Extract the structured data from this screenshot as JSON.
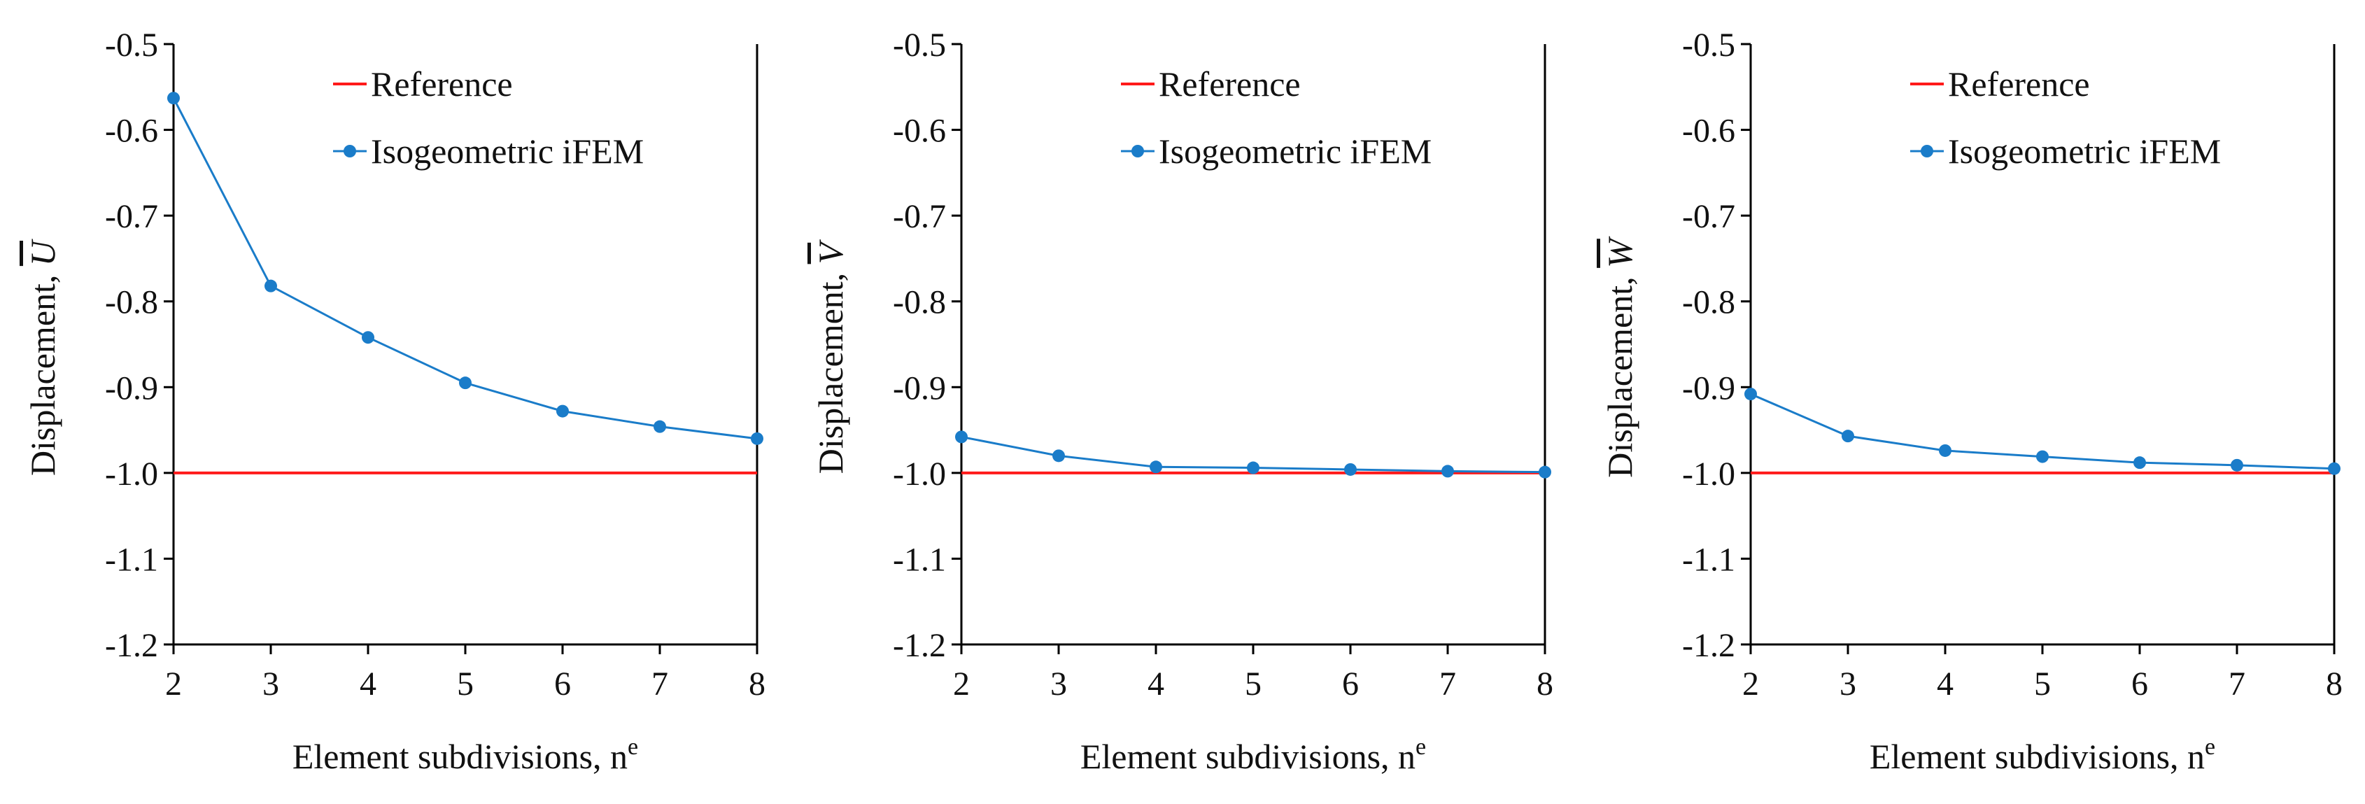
{
  "colors": {
    "reference": "#ff1a1a",
    "ifem": "#1a7cc9",
    "axis": "#000000"
  },
  "chart_data": [
    {
      "type": "line",
      "title": "",
      "xlabel": "Element subdivisions, n",
      "xlabel_superscript": "e",
      "ylabel": "Displacement,",
      "ylabel_symbol": "U",
      "xlim": [
        2,
        8
      ],
      "ylim": [
        -1.2,
        -0.5
      ],
      "x_ticks": [
        "2",
        "3",
        "4",
        "5",
        "6",
        "7",
        "8"
      ],
      "y_ticks": [
        "-0.5",
        "-0.6",
        "-0.7",
        "-0.8",
        "-0.9",
        "-1.0",
        "-1.1",
        "-1.2"
      ],
      "legend_position": "top-right",
      "series": [
        {
          "name": "Reference",
          "style": "line",
          "x": [
            2,
            8
          ],
          "y": [
            -1.0,
            -1.0
          ]
        },
        {
          "name": "Isogeometric iFEM",
          "style": "line-markers",
          "x": [
            2,
            3,
            4,
            5,
            6,
            7,
            8
          ],
          "y": [
            -0.563,
            -0.782,
            -0.842,
            -0.895,
            -0.928,
            -0.946,
            -0.96
          ]
        }
      ]
    },
    {
      "type": "line",
      "title": "",
      "xlabel": "Element subdivisions, n",
      "xlabel_superscript": "e",
      "ylabel": "Displacement,",
      "ylabel_symbol": "V",
      "xlim": [
        2,
        8
      ],
      "ylim": [
        -1.2,
        -0.5
      ],
      "x_ticks": [
        "2",
        "3",
        "4",
        "5",
        "6",
        "7",
        "8"
      ],
      "y_ticks": [
        "-0.5",
        "-0.6",
        "-0.7",
        "-0.8",
        "-0.9",
        "-1.0",
        "-1.1",
        "-1.2"
      ],
      "legend_position": "top-right",
      "series": [
        {
          "name": "Reference",
          "style": "line",
          "x": [
            2,
            8
          ],
          "y": [
            -1.0,
            -1.0
          ]
        },
        {
          "name": "Isogeometric iFEM",
          "style": "line-markers",
          "x": [
            2,
            3,
            4,
            5,
            6,
            7,
            8
          ],
          "y": [
            -0.958,
            -0.98,
            -0.993,
            -0.994,
            -0.996,
            -0.998,
            -0.999
          ]
        }
      ]
    },
    {
      "type": "line",
      "title": "",
      "xlabel": "Element subdivisions, n",
      "xlabel_superscript": "e",
      "ylabel": "Displacement,",
      "ylabel_symbol": "W",
      "xlim": [
        2,
        8
      ],
      "ylim": [
        -1.2,
        -0.5
      ],
      "x_ticks": [
        "2",
        "3",
        "4",
        "5",
        "6",
        "7",
        "8"
      ],
      "y_ticks": [
        "-0.5",
        "-0.6",
        "-0.7",
        "-0.8",
        "-0.9",
        "-1.0",
        "-1.1",
        "-1.2"
      ],
      "legend_position": "top-right",
      "series": [
        {
          "name": "Reference",
          "style": "line",
          "x": [
            2,
            8
          ],
          "y": [
            -1.0,
            -1.0
          ]
        },
        {
          "name": "Isogeometric iFEM",
          "style": "line-markers",
          "x": [
            2,
            3,
            4,
            5,
            6,
            7,
            8
          ],
          "y": [
            -0.908,
            -0.957,
            -0.974,
            -0.981,
            -0.988,
            -0.991,
            -0.995
          ]
        }
      ]
    }
  ]
}
